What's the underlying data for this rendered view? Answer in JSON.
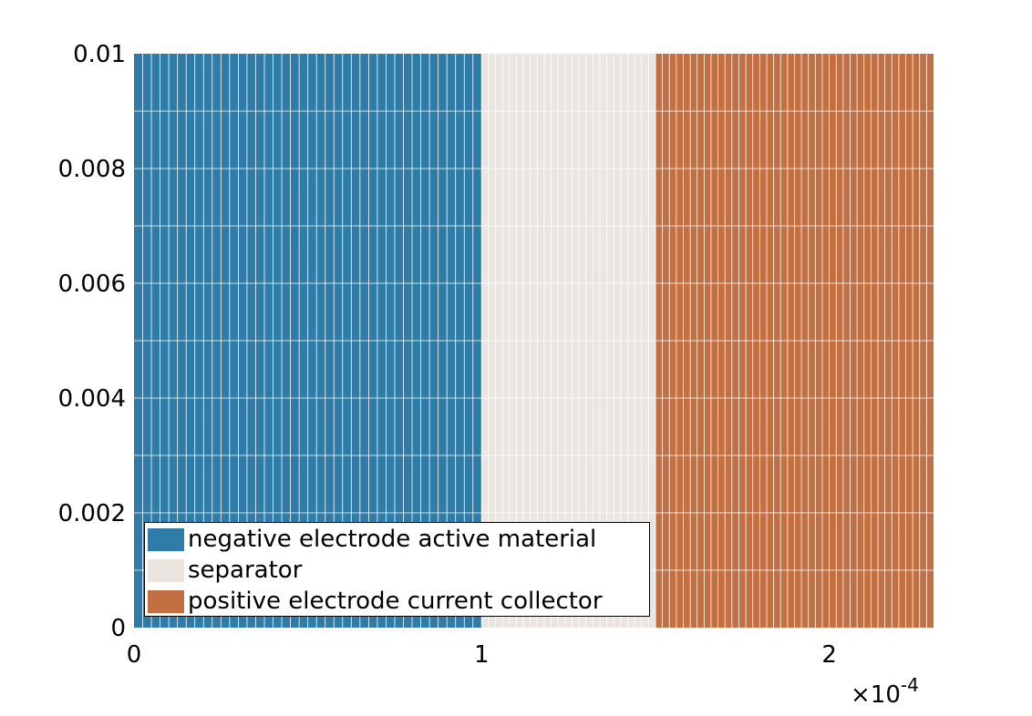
{
  "chart_data": {
    "type": "heatmap",
    "title": "",
    "xlabel": "",
    "ylabel": "",
    "xlim": [
      0,
      0.00023
    ],
    "ylim": [
      0,
      0.01
    ],
    "x_exponent_label": {
      "times": "×",
      "base": "10",
      "exponent": "-4"
    },
    "x_ticks": [
      {
        "value": 0,
        "label": "0"
      },
      {
        "value": 0.0001,
        "label": "1"
      },
      {
        "value": 0.0002,
        "label": "2"
      }
    ],
    "y_ticks": [
      {
        "value": 0,
        "label": "0"
      },
      {
        "value": 0.002,
        "label": "0.002"
      },
      {
        "value": 0.004,
        "label": "0.004"
      },
      {
        "value": 0.006,
        "label": "0.006"
      },
      {
        "value": 0.008,
        "label": "0.008"
      },
      {
        "value": 0.01,
        "label": "0.01"
      }
    ],
    "mesh": {
      "grid_color": "#ffffff",
      "y_divisions": 10
    },
    "regions": [
      {
        "name": "negative electrode active material",
        "x_start": 0,
        "x_end": 0.0001,
        "x_divisions": 40,
        "color": "#2e7ca7"
      },
      {
        "name": "separator",
        "x_start": 0.0001,
        "x_end": 0.00015,
        "x_divisions": 25,
        "color": "#ebe5e1"
      },
      {
        "name": "positive electrode current collector",
        "x_start": 0.00015,
        "x_end": 0.00023,
        "x_divisions": 40,
        "color": "#c26f42"
      }
    ],
    "legend_position": "lower-left",
    "grid": false
  }
}
